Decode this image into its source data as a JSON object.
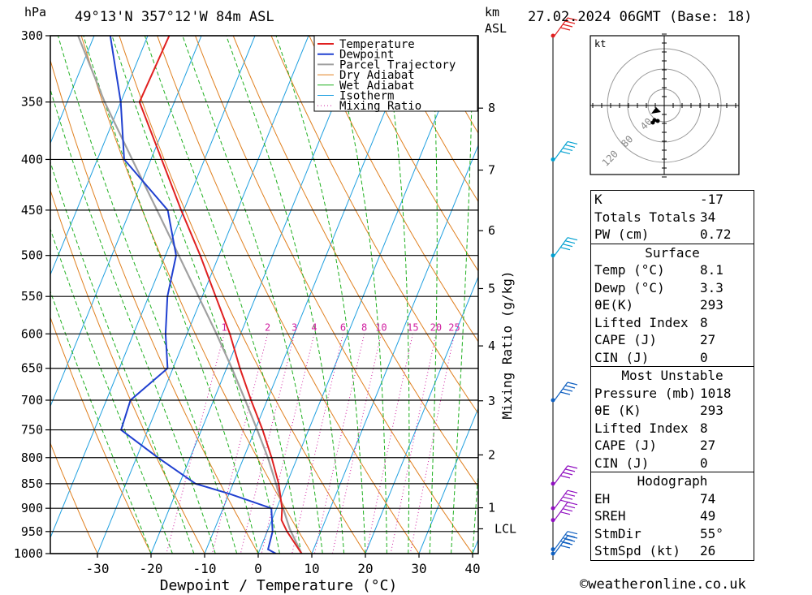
{
  "header": {
    "location": "49°13'N 357°12'W 84m ASL",
    "datetime": "27.02.2024 06GMT (Base: 18)",
    "pressure_unit": "hPa",
    "height_unit": "km",
    "height_ref": "ASL"
  },
  "chart_data": {
    "type": "line",
    "title": "",
    "xlabel": "Dewpoint / Temperature (°C)",
    "ylabel": "hPa",
    "y2label": "Mixing Ratio (g/kg)",
    "x_ticks": [
      -30,
      -20,
      -10,
      0,
      10,
      20,
      30,
      40
    ],
    "p_levels": [
      300,
      350,
      400,
      450,
      500,
      550,
      600,
      650,
      700,
      750,
      800,
      850,
      900,
      950,
      1000
    ],
    "km_ticks": [
      {
        "km": "1",
        "p": 899
      },
      {
        "km": "2",
        "p": 795
      },
      {
        "km": "3",
        "p": 701
      },
      {
        "km": "4",
        "p": 617
      },
      {
        "km": "5",
        "p": 540
      },
      {
        "km": "6",
        "p": 472
      },
      {
        "km": "7",
        "p": 410
      },
      {
        "km": "8",
        "p": 355
      }
    ],
    "lcl": {
      "label": "LCL",
      "p": 944
    },
    "mixing_ratio_labels": [
      "1",
      "2",
      "3",
      "4",
      "6",
      "8",
      "10",
      "15",
      "20",
      "25"
    ],
    "mixing_ratio_values": [
      1,
      2,
      3,
      4,
      6,
      8,
      10,
      15,
      20,
      25
    ],
    "legend": [
      "Temperature",
      "Dewpoint",
      "Parcel Trajectory",
      "Dry Adiabat",
      "Wet Adiabat",
      "Isotherm",
      "Mixing Ratio"
    ],
    "legend_position": "top-right",
    "series": [
      {
        "name": "Temperature",
        "color": "#e02020",
        "points": [
          [
            1000,
            8.1
          ],
          [
            950,
            3.7
          ],
          [
            925,
            1.8
          ],
          [
            900,
            1.0
          ],
          [
            850,
            -1.5
          ],
          [
            800,
            -4.8
          ],
          [
            750,
            -8.6
          ],
          [
            700,
            -13.0
          ],
          [
            650,
            -17.5
          ],
          [
            600,
            -22.0
          ],
          [
            550,
            -27.5
          ],
          [
            500,
            -33.5
          ],
          [
            450,
            -40.5
          ],
          [
            400,
            -48.0
          ],
          [
            350,
            -56.5
          ],
          [
            300,
            -56.0
          ]
        ]
      },
      {
        "name": "Dewpoint",
        "color": "#2040d0",
        "points": [
          [
            1000,
            3.3
          ],
          [
            990,
            1.5
          ],
          [
            950,
            1.0
          ],
          [
            900,
            -1.0
          ],
          [
            870,
            -10.0
          ],
          [
            850,
            -17.0
          ],
          [
            800,
            -26.0
          ],
          [
            750,
            -35.0
          ],
          [
            700,
            -35.5
          ],
          [
            650,
            -31.0
          ],
          [
            600,
            -34.0
          ],
          [
            550,
            -36.5
          ],
          [
            500,
            -38.0
          ],
          [
            450,
            -43.0
          ],
          [
            400,
            -55.0
          ],
          [
            350,
            -60.0
          ],
          [
            300,
            -67.0
          ]
        ]
      },
      {
        "name": "Parcel Trajectory",
        "color": "#a0a0a0",
        "points": [
          [
            1000,
            8.1
          ],
          [
            944,
            4.0
          ],
          [
            900,
            1.2
          ],
          [
            850,
            -2.0
          ],
          [
            800,
            -5.5
          ],
          [
            750,
            -9.6
          ],
          [
            700,
            -14.1
          ],
          [
            650,
            -19.0
          ],
          [
            600,
            -24.5
          ],
          [
            550,
            -30.7
          ],
          [
            500,
            -37.5
          ],
          [
            450,
            -45.0
          ],
          [
            400,
            -53.5
          ],
          [
            350,
            -63.0
          ],
          [
            300,
            -73.0
          ]
        ]
      }
    ]
  },
  "wind_barbs": [
    {
      "p": 1000,
      "color": "#1060c0"
    },
    {
      "p": 990,
      "color": "#1060c0"
    },
    {
      "p": 925,
      "color": "#9010c0"
    },
    {
      "p": 900,
      "color": "#9010c0"
    },
    {
      "p": 850,
      "color": "#9010c0"
    },
    {
      "p": 700,
      "color": "#1060c0"
    },
    {
      "p": 500,
      "color": "#00a0d0"
    },
    {
      "p": 400,
      "color": "#00a0d0"
    },
    {
      "p": 300,
      "color": "#e02020"
    }
  ],
  "hodograph": {
    "unit": "kt",
    "ring_labels": [
      "120",
      "80",
      "40"
    ]
  },
  "indices": [
    {
      "label": "K",
      "value": "-17"
    },
    {
      "label": "Totals Totals",
      "value": "34"
    },
    {
      "label": "PW (cm)",
      "value": "0.72"
    }
  ],
  "surface": {
    "title": "Surface",
    "rows": [
      {
        "label": "Temp (°C)",
        "value": "8.1"
      },
      {
        "label": "Dewp (°C)",
        "value": "3.3"
      },
      {
        "label": "θE(K)",
        "value": "293"
      },
      {
        "label": "Lifted Index",
        "value": "8"
      },
      {
        "label": "CAPE (J)",
        "value": "27"
      },
      {
        "label": "CIN (J)",
        "value": "0"
      }
    ]
  },
  "most_unstable": {
    "title": "Most Unstable",
    "rows": [
      {
        "label": "Pressure (mb)",
        "value": "1018"
      },
      {
        "label": "θE (K)",
        "value": "293"
      },
      {
        "label": "Lifted Index",
        "value": "8"
      },
      {
        "label": "CAPE (J)",
        "value": "27"
      },
      {
        "label": "CIN (J)",
        "value": "0"
      }
    ]
  },
  "hodograph_table": {
    "title": "Hodograph",
    "rows": [
      {
        "label": "EH",
        "value": "74"
      },
      {
        "label": "SREH",
        "value": "49"
      },
      {
        "label": "StmDir",
        "value": "55°"
      },
      {
        "label": "StmSpd (kt)",
        "value": "26"
      }
    ]
  },
  "footer": "©weatheronline.co.uk",
  "colors": {
    "temperature": "#e02020",
    "dewpoint": "#2040d0",
    "parcel": "#a0a0a0",
    "dry_adiabat": "#e08020",
    "wet_adiabat": "#20b020",
    "isotherm": "#20a0e0",
    "mixing_ratio": "#d020a0"
  }
}
